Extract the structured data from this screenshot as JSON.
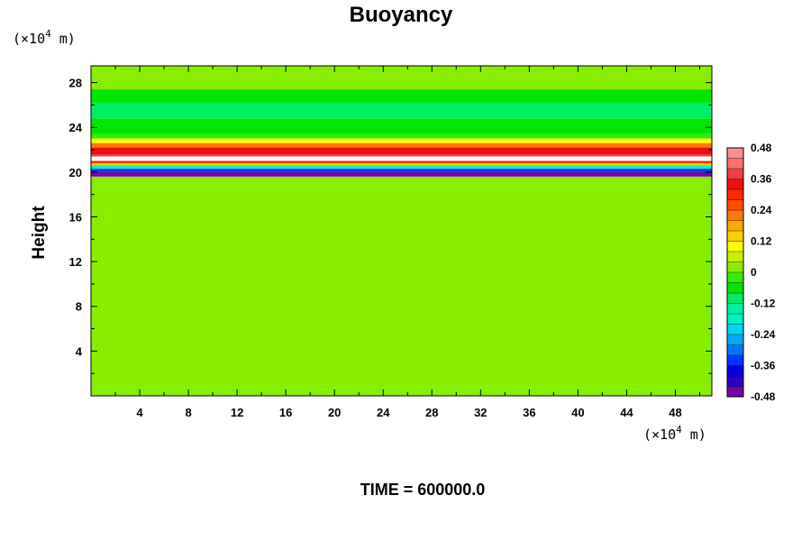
{
  "chart_data": {
    "type": "heatmap",
    "title": "Buoyancy",
    "ylabel": "Height",
    "xlabel": "",
    "x_unit": {
      "prefix": "(×10",
      "exp": "4",
      "suffix": " m)"
    },
    "y_unit": {
      "prefix": "(×10",
      "exp": "4",
      "suffix": " m)"
    },
    "xlim": [
      0,
      51
    ],
    "ylim": [
      0,
      29.5
    ],
    "x_ticks": [
      "4",
      "8",
      "12",
      "16",
      "20",
      "24",
      "28",
      "32",
      "36",
      "40",
      "44",
      "48"
    ],
    "y_ticks": [
      "4",
      "8",
      "12",
      "16",
      "20",
      "24",
      "28"
    ],
    "colorbar": {
      "min": -0.48,
      "max": 0.48,
      "ticks": [
        "0.48",
        "0.36",
        "0.24",
        "0.12",
        "0",
        "-0.12",
        "-0.24",
        "-0.36",
        "-0.48"
      ],
      "colors": [
        "#7a00a8",
        "#2a00c8",
        "#0000e6",
        "#0033ff",
        "#0077ff",
        "#00aaff",
        "#00d6ee",
        "#00f0c8",
        "#00f0a0",
        "#00ee66",
        "#00e600",
        "#33ee00",
        "#88ee00",
        "#c8f000",
        "#ffff00",
        "#ffd000",
        "#ffa800",
        "#ff7a00",
        "#ff4a00",
        "#ff2a00",
        "#ee1010",
        "#ee4040",
        "#ff7070",
        "#ff9090"
      ]
    },
    "layers": [
      {
        "y_bottom": 0,
        "y_top": 19.6,
        "value": 0.0
      },
      {
        "y_bottom": 19.6,
        "y_top": 20.0,
        "value": -0.46
      },
      {
        "y_bottom": 20.0,
        "y_top": 20.3,
        "value": -0.34
      },
      {
        "y_bottom": 20.3,
        "y_top": 20.6,
        "value": -0.18
      },
      {
        "y_bottom": 20.6,
        "y_top": 20.8,
        "value": 0.12
      },
      {
        "y_bottom": 20.8,
        "y_top": 21.0,
        "value": 0.3
      },
      {
        "y_bottom": 21.0,
        "y_top": 21.4,
        "value": 0.5
      },
      {
        "y_bottom": 21.4,
        "y_top": 21.6,
        "value": 0.38
      },
      {
        "y_bottom": 21.6,
        "y_top": 22.2,
        "value": 0.32
      },
      {
        "y_bottom": 22.2,
        "y_top": 22.6,
        "value": 0.22
      },
      {
        "y_bottom": 22.6,
        "y_top": 23.0,
        "value": 0.1
      },
      {
        "y_bottom": 23.0,
        "y_top": 23.4,
        "value": -0.02
      },
      {
        "y_bottom": 23.4,
        "y_top": 24.8,
        "value": -0.08
      },
      {
        "y_bottom": 24.8,
        "y_top": 26.2,
        "value": -0.12
      },
      {
        "y_bottom": 26.2,
        "y_top": 27.4,
        "value": -0.06
      },
      {
        "y_bottom": 27.4,
        "y_top": 29.5,
        "value": 0.0
      }
    ]
  },
  "footer": {
    "label": "TIME = 600000.0"
  }
}
